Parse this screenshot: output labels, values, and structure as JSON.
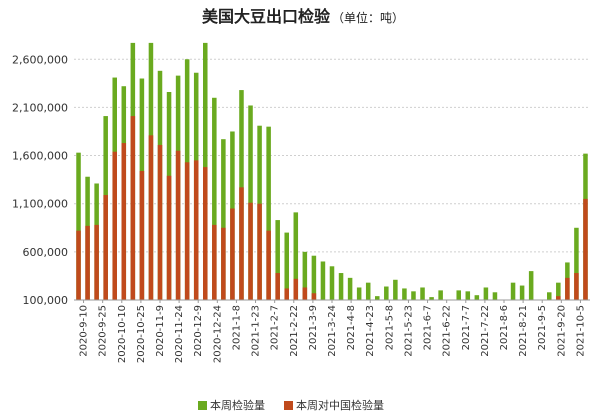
{
  "chart_data": {
    "type": "bar",
    "title": "美国大豆出口检验",
    "title_unit": "（单位：吨）",
    "xlabel": "",
    "ylabel": "",
    "ylim": [
      100000,
      2800000
    ],
    "y_ticks": [
      "100,000",
      "600,000",
      "1,100,000",
      "1,600,000",
      "2,100,000",
      "2,600,000"
    ],
    "y_tick_values": [
      100000,
      600000,
      1100000,
      1600000,
      2100000,
      2600000
    ],
    "grid": true,
    "legend_position": "bottom",
    "x_tick_labels": [
      "2020-9-10",
      "2020-9-25",
      "2020-10-10",
      "2020-10-25",
      "2020-11-9",
      "2020-11-24",
      "2020-12-9",
      "2020-12-24",
      "2021-1-8",
      "2021-1-23",
      "2021-2-7",
      "2021-2-22",
      "2021-3-9",
      "2021-3-24",
      "2021-4-8",
      "2021-4-23",
      "2021-5-8",
      "2021-5-23",
      "2021-6-7",
      "2021-6-22",
      "2021-7-7",
      "2021-7-22",
      "2021-8-6",
      "2021-8-21",
      "2021-9-5",
      "2021-9-20",
      "2021-10-5"
    ],
    "series": [
      {
        "name": "本周检验量",
        "color": "#6aaa1f",
        "values": [
          1630000,
          1380000,
          1310000,
          2010000,
          2410000,
          2320000,
          2770000,
          2400000,
          2770000,
          2480000,
          2260000,
          2430000,
          2600000,
          2460000,
          2770000,
          2200000,
          1770000,
          1850000,
          2280000,
          2120000,
          1910000,
          1900000,
          930000,
          800000,
          1010000,
          600000,
          560000,
          500000,
          450000,
          380000,
          330000,
          230000,
          280000,
          140000,
          240000,
          310000,
          220000,
          190000,
          230000,
          130000,
          200000,
          60000,
          200000,
          190000,
          150000,
          230000,
          180000,
          100000,
          280000,
          250000,
          400000,
          70000,
          180000,
          280000,
          490000,
          850000,
          1620000
        ]
      },
      {
        "name": "本周对中国检验量",
        "color": "#c04a1c",
        "values": [
          820000,
          870000,
          880000,
          1190000,
          1640000,
          1730000,
          2010000,
          1440000,
          1810000,
          1710000,
          1390000,
          1650000,
          1530000,
          1550000,
          1480000,
          880000,
          850000,
          1050000,
          1270000,
          1110000,
          1100000,
          820000,
          380000,
          220000,
          320000,
          230000,
          170000,
          0,
          0,
          0,
          0,
          0,
          0,
          0,
          0,
          0,
          0,
          0,
          0,
          0,
          0,
          0,
          0,
          0,
          0,
          0,
          0,
          0,
          0,
          0,
          0,
          0,
          0,
          140000,
          330000,
          380000,
          1150000
        ]
      }
    ]
  }
}
